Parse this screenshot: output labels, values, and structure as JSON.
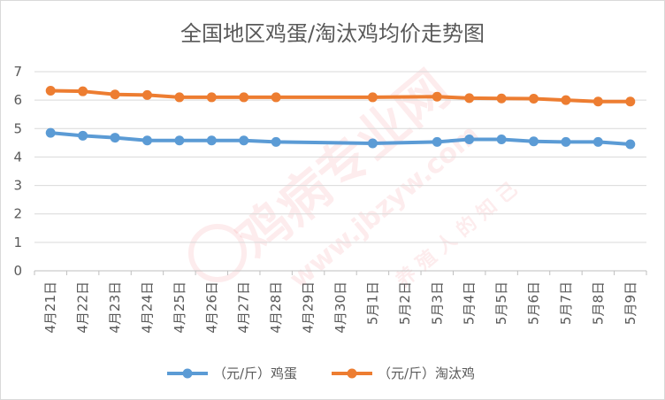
{
  "chart_data": {
    "type": "line",
    "title": "全国地区鸡蛋/淘汰鸡均价走势图",
    "categories": [
      "4月21日",
      "4月22日",
      "4月23日",
      "4月24日",
      "4月25日",
      "4月26日",
      "4月27日",
      "4月28日",
      "4月29日",
      "4月30日",
      "5月1日",
      "5月2日",
      "5月3日",
      "5月4日",
      "5月5日",
      "5月6日",
      "5月7日",
      "5月8日",
      "5月9日"
    ],
    "y_ticks": [
      "0",
      "1",
      "2",
      "3",
      "4",
      "5",
      "6",
      "7"
    ],
    "ylim": [
      0,
      7
    ],
    "grid": true,
    "legend_position": "bottom",
    "series": [
      {
        "name": "（元/斤）鸡蛋",
        "color": "#5b9bd5",
        "values": [
          4.85,
          4.75,
          4.68,
          4.58,
          4.58,
          4.58,
          4.58,
          4.53,
          null,
          null,
          4.48,
          null,
          4.53,
          4.62,
          4.62,
          4.55,
          4.53,
          4.53,
          4.45
        ]
      },
      {
        "name": "（元/斤）淘汰鸡",
        "color": "#ed7d31",
        "values": [
          6.33,
          6.31,
          6.2,
          6.18,
          6.1,
          6.1,
          6.1,
          6.1,
          null,
          null,
          6.1,
          null,
          6.12,
          6.07,
          6.06,
          6.05,
          6.0,
          5.95,
          5.95
        ]
      }
    ],
    "watermark": {
      "text": "鸡病专业网",
      "url": "www.jbzyw.com",
      "tagline": "养 殖 人 的 知 己"
    }
  }
}
